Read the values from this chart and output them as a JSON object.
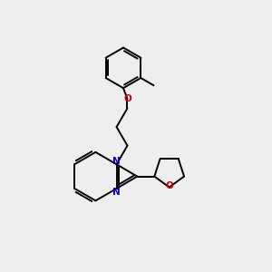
{
  "bg_color": "#eeeeee",
  "bond_color": "#000000",
  "n_color": "#0000cc",
  "o_color": "#cc0000",
  "line_width": 1.4,
  "figsize": [
    3.0,
    3.0
  ],
  "dpi": 100,
  "xlim": [
    0,
    10
  ],
  "ylim": [
    0,
    10
  ]
}
